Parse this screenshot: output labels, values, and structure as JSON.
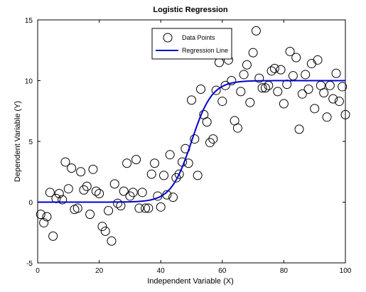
{
  "chart_data": {
    "type": "scatter",
    "title": "Logistic Regression",
    "xlabel": "Independent Variable (X)",
    "ylabel": "Dependent Variable (Y)",
    "xlim": [
      0,
      100
    ],
    "ylim": [
      -5,
      15
    ],
    "xticks": [
      0,
      20,
      40,
      60,
      80,
      100
    ],
    "yticks": [
      -5,
      0,
      5,
      10,
      15
    ],
    "grid": false,
    "legend_position": "top-center",
    "series": [
      {
        "name": "Data Points",
        "kind": "scatter",
        "marker": "open-circle",
        "color": "#000000",
        "points": [
          [
            1,
            -1.0
          ],
          [
            2,
            -1.7
          ],
          [
            3,
            -1.2
          ],
          [
            4,
            0.8
          ],
          [
            5,
            -2.8
          ],
          [
            6,
            0.3
          ],
          [
            7,
            0.7
          ],
          [
            8,
            0.2
          ],
          [
            9,
            3.3
          ],
          [
            10,
            1.1
          ],
          [
            11,
            2.8
          ],
          [
            12,
            -0.6
          ],
          [
            13,
            -0.5
          ],
          [
            14,
            2.5
          ],
          [
            15,
            1.0
          ],
          [
            16,
            1.3
          ],
          [
            17,
            -1.0
          ],
          [
            18,
            2.7
          ],
          [
            19,
            0.9
          ],
          [
            20,
            0.7
          ],
          [
            21,
            -2.0
          ],
          [
            22,
            -2.4
          ],
          [
            23,
            -0.7
          ],
          [
            24,
            -3.2
          ],
          [
            25,
            1.5
          ],
          [
            26,
            -0.1
          ],
          [
            27,
            -0.3
          ],
          [
            28,
            0.9
          ],
          [
            29,
            3.2
          ],
          [
            30,
            0.5
          ],
          [
            31,
            0.8
          ],
          [
            32,
            3.5
          ],
          [
            33,
            -0.5
          ],
          [
            34,
            0.8
          ],
          [
            35,
            -0.5
          ],
          [
            36,
            -0.5
          ],
          [
            37,
            2.3
          ],
          [
            38,
            3.2
          ],
          [
            39,
            0.5
          ],
          [
            40,
            -0.4
          ],
          [
            41,
            2.2
          ],
          [
            42,
            0.6
          ],
          [
            43,
            3.9
          ],
          [
            44,
            0.4
          ],
          [
            45,
            2.0
          ],
          [
            46,
            2.3
          ],
          [
            47,
            3.3
          ],
          [
            48,
            4.4
          ],
          [
            49,
            3.2
          ],
          [
            50,
            8.4
          ],
          [
            51,
            5.2
          ],
          [
            52,
            2.2
          ],
          [
            53,
            9.3
          ],
          [
            54,
            7.2
          ],
          [
            55,
            6.6
          ],
          [
            56,
            4.9
          ],
          [
            57,
            5.2
          ],
          [
            58,
            9.2
          ],
          [
            59,
            11.5
          ],
          [
            60,
            8.3
          ],
          [
            61,
            9.6
          ],
          [
            62,
            11.7
          ],
          [
            63,
            10.0
          ],
          [
            64,
            6.7
          ],
          [
            65,
            6.1
          ],
          [
            66,
            9.1
          ],
          [
            67,
            10.5
          ],
          [
            68,
            11.3
          ],
          [
            69,
            8.2
          ],
          [
            70,
            12.3
          ],
          [
            71,
            14.1
          ],
          [
            72,
            10.2
          ],
          [
            73,
            9.4
          ],
          [
            74,
            9.4
          ],
          [
            75,
            9.6
          ],
          [
            76,
            10.8
          ],
          [
            77,
            11.0
          ],
          [
            78,
            9.1
          ],
          [
            79,
            10.9
          ],
          [
            80,
            8.1
          ],
          [
            81,
            9.7
          ],
          [
            82,
            12.4
          ],
          [
            83,
            10.4
          ],
          [
            84,
            11.9
          ],
          [
            85,
            6.0
          ],
          [
            86,
            8.9
          ],
          [
            87,
            10.5
          ],
          [
            88,
            9.3
          ],
          [
            89,
            11.4
          ],
          [
            90,
            7.7
          ],
          [
            91,
            11.7
          ],
          [
            92,
            9.6
          ],
          [
            93,
            9.0
          ],
          [
            94,
            7.0
          ],
          [
            95,
            9.6
          ],
          [
            96,
            8.5
          ],
          [
            97,
            10.6
          ],
          [
            98,
            8.3
          ],
          [
            99,
            9.5
          ],
          [
            100,
            7.2
          ]
        ]
      },
      {
        "name": "Regression Line",
        "kind": "line",
        "color": "#0000cc",
        "function": "logistic",
        "upper": 10,
        "midpoint": 50,
        "steepness": 0.3,
        "x_start": 0,
        "x_end": 100
      }
    ]
  }
}
